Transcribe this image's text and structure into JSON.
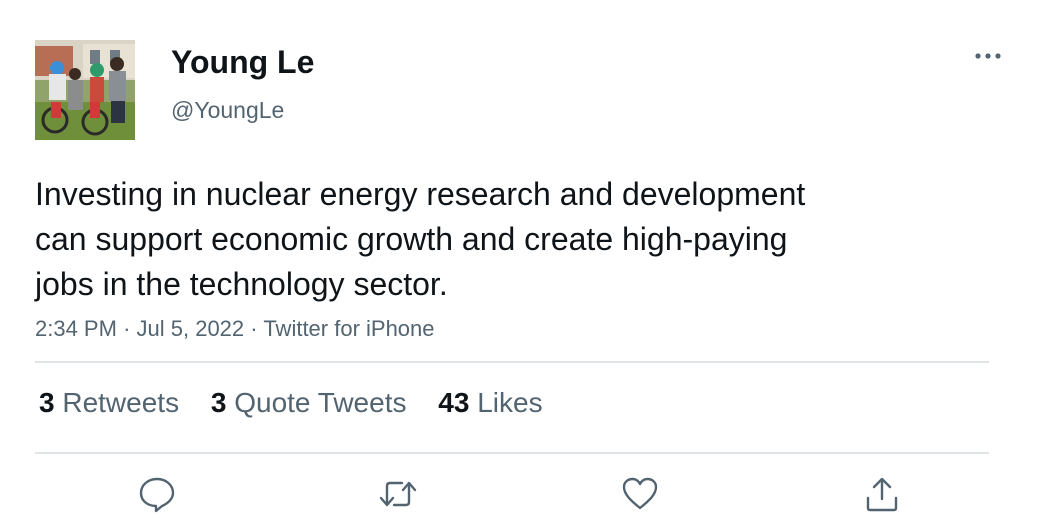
{
  "author": {
    "display_name": "Young Le",
    "handle": "@YoungLe"
  },
  "tweet": {
    "text": "Investing in nuclear energy research and development\ncan support economic growth and create high-paying\njobs in the technology sector.",
    "time": "2:34 PM",
    "separator": "·",
    "date": "Jul 5, 2022",
    "source": "Twitter for iPhone"
  },
  "stats": {
    "retweets_count": "3",
    "retweets_label": "Retweets",
    "quotes_count": "3",
    "quotes_label": "Quote Tweets",
    "likes_count": "43",
    "likes_label": "Likes"
  },
  "icons": {
    "more": "more-horizontal-icon",
    "reply": "reply-icon",
    "retweet": "retweet-icon",
    "like": "heart-icon",
    "share": "share-icon"
  },
  "colors": {
    "text_primary": "#0f1419",
    "text_secondary": "#536471",
    "divider": "#e1e4e6"
  }
}
